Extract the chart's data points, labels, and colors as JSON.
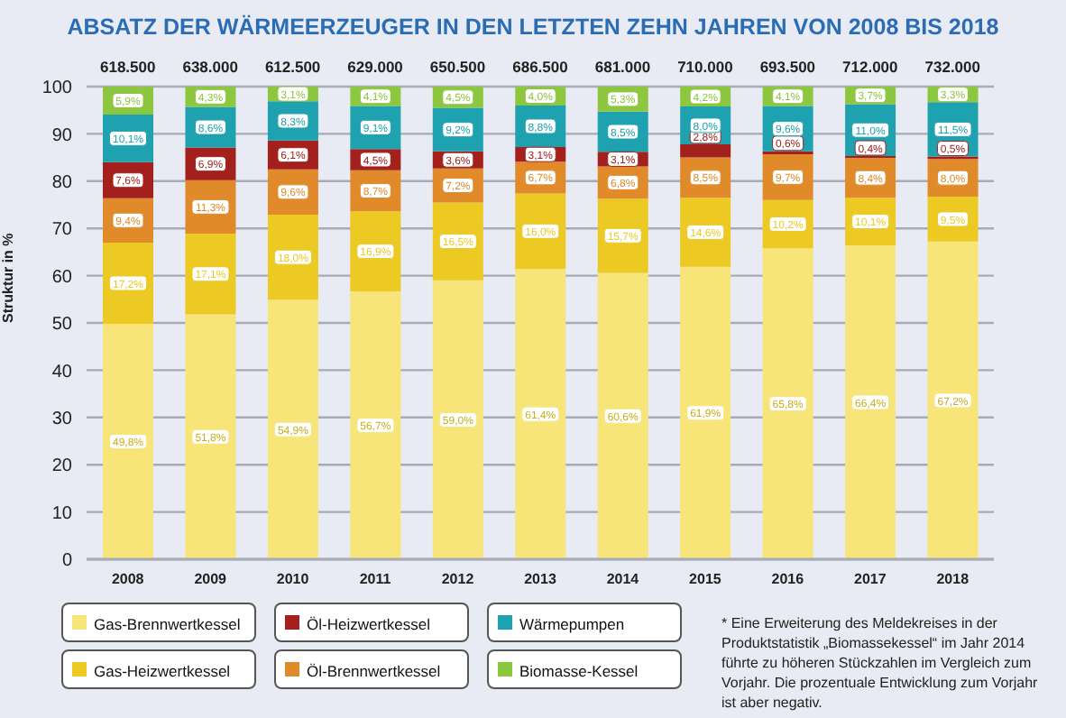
{
  "chart_data": {
    "type": "bar",
    "title": "ABSATZ DER WÄRMEERZEUGER IN DEN LETZTEN ZEHN JAHREN VON 2008 BIS 2018",
    "ylabel": "Struktur in %",
    "categories": [
      "2008",
      "2009",
      "2010",
      "2011",
      "2012",
      "2013",
      "2014",
      "2015",
      "2016",
      "2017",
      "2018"
    ],
    "stacked": true,
    "ylim": [
      0,
      100
    ],
    "yticks": [
      0,
      10,
      20,
      30,
      40,
      50,
      60,
      70,
      80,
      90,
      100
    ],
    "grid": "y",
    "legend": "bottom left",
    "series": [
      {
        "name": "Gas-Brennwertkessel",
        "color": "#f7e57a",
        "values": [
          49.8,
          51.8,
          54.9,
          56.7,
          59.0,
          61.4,
          60.6,
          61.9,
          65.8,
          66.4,
          67.2
        ],
        "value_labels": [
          "49,8%",
          "51,8%",
          "54,9%",
          "56,7%",
          "59,0%",
          "61,4%",
          "60,6%",
          "61,9%",
          "65,8%",
          "66,4%",
          "67,2%"
        ]
      },
      {
        "name": "Gas-Heizwertkessel",
        "color": "#ecc923",
        "values": [
          17.2,
          17.1,
          18.0,
          16.9,
          16.5,
          16.0,
          15.7,
          14.6,
          10.2,
          10.1,
          9.5
        ],
        "value_labels": [
          "17,2%",
          "17,1%",
          "18,0%",
          "16,9%",
          "16,5%",
          "16,0%",
          "15,7%",
          "14,6%",
          "10,2%",
          "10,1%",
          "9,5%"
        ]
      },
      {
        "name": "Öl-Brennwertkessel",
        "color": "#e08a2a",
        "values": [
          9.4,
          11.3,
          9.6,
          8.7,
          7.2,
          6.7,
          6.8,
          8.5,
          9.7,
          8.4,
          8.0
        ],
        "value_labels": [
          "9,4%",
          "11,3%",
          "9,6%",
          "8,7%",
          "7,2%",
          "6,7%",
          "6,8%",
          "8,5%",
          "9,7%",
          "8,4%",
          "8,0%"
        ]
      },
      {
        "name": "Öl-Heizwertkessel",
        "color": "#a3201d",
        "values": [
          7.6,
          6.9,
          6.1,
          4.5,
          3.6,
          3.1,
          3.1,
          2.8,
          0.6,
          0.4,
          0.5
        ],
        "value_labels": [
          "7,6%",
          "6,9%",
          "6,1%",
          "4,5%",
          "3,6%",
          "3,1%",
          "3,1%",
          "2,8%",
          "0,6%",
          "0,4%",
          "0,5%"
        ]
      },
      {
        "name": "Wärmepumpen",
        "color": "#1fa2b0",
        "values": [
          10.1,
          8.6,
          8.3,
          9.1,
          9.2,
          8.8,
          8.5,
          8.0,
          9.6,
          11.0,
          11.5
        ],
        "value_labels": [
          "10,1%",
          "8,6%",
          "8,3%",
          "9,1%",
          "9,2%",
          "8,8%",
          "8,5%",
          "8,0%",
          "9,6%",
          "11,0%",
          "11,5%"
        ]
      },
      {
        "name": "Biomasse-Kessel",
        "color": "#8dc63f",
        "values": [
          5.9,
          4.3,
          3.1,
          4.1,
          4.5,
          4.0,
          5.3,
          4.2,
          4.1,
          3.7,
          3.3
        ],
        "value_labels": [
          "5,9%",
          "4,3%",
          "3,1%",
          "4,1%",
          "4,5%",
          "4,0%",
          "5,3%",
          "4,2%",
          "4,1%",
          "3,7%",
          "3,3%"
        ]
      }
    ],
    "annotations": [
      "618.500",
      "638.000",
      "612.500",
      "629.000",
      "650.500",
      "686.500",
      "681.000",
      "710.000",
      "693.500",
      "712.000",
      "732.000",
      "* Eine Erweiterung des Meldekreises in der Produktstatistik „Biomassekessel“ im Jahr 2014 führte zu höheren Stückzahlen im Vergleich zum Vorjahr. Die prozentuale Entwicklung zum Vorjahr ist aber negativ."
    ]
  }
}
